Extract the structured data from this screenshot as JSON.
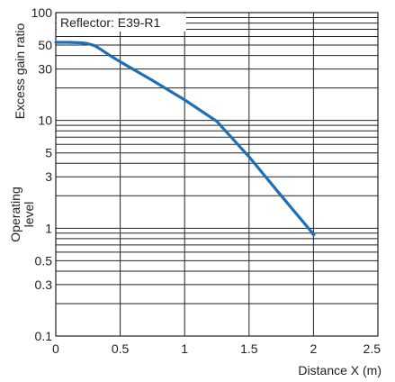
{
  "chart_data": {
    "type": "line",
    "title": "",
    "annotation": "Reflector: E39-R1",
    "xlabel": "Distance X (m)",
    "ylabel": "Excess gain ratio",
    "operating_level_label": "Operating level",
    "operating_level_label_lines": [
      "Operating",
      "level"
    ],
    "x_scale": "linear",
    "y_scale": "log",
    "xlim": [
      0,
      2.5
    ],
    "ylim": [
      0.1,
      100
    ],
    "grid": true,
    "legend": "none",
    "x_ticks": [
      0,
      0.5,
      1,
      1.5,
      2,
      2.5
    ],
    "x_tick_labels": [
      "0",
      "0.5",
      "1",
      "1.5",
      "2",
      "2.5"
    ],
    "y_ticks": [
      0.1,
      0.3,
      0.5,
      1,
      3,
      5,
      10,
      30,
      50,
      100
    ],
    "y_tick_labels": [
      "0.1",
      "0.3",
      "0.5",
      "1",
      "3",
      "5",
      "10",
      "30",
      "50",
      "100"
    ],
    "y_grid_values": [
      0.1,
      0.2,
      0.3,
      0.4,
      0.5,
      0.6,
      0.7,
      0.8,
      0.9,
      1,
      2,
      3,
      4,
      5,
      6,
      7,
      8,
      9,
      10,
      20,
      30,
      40,
      50,
      60,
      70,
      80,
      90,
      100
    ],
    "line_color": "#1f6fb5",
    "grid_color": "#222222",
    "series": [
      {
        "x": [
          0,
          0.1,
          0.2,
          0.25,
          0.3,
          0.35,
          0.4,
          0.5,
          0.75,
          1.0,
          1.25,
          1.5,
          1.75,
          2.0
        ],
        "y": [
          53,
          53,
          52.5,
          51.5,
          49.5,
          45.5,
          41.5,
          35,
          23.5,
          15.5,
          9.8,
          4.6,
          2.0,
          0.88
        ]
      }
    ]
  }
}
